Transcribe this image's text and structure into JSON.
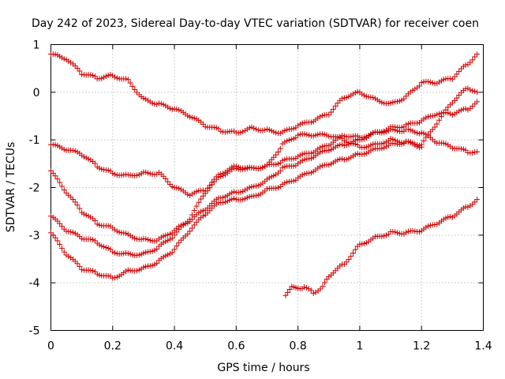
{
  "chart_data": {
    "type": "scatter",
    "title": "Day 242 of 2023, Sidereal Day-to-day VTEC variation (SDTVAR) for receiver coen",
    "xlabel": "GPS time / hours",
    "ylabel": "SDTVAR / TECUs",
    "xlim": [
      0,
      1.4
    ],
    "ylim": [
      -5,
      1
    ],
    "xticks": [
      "0",
      "0.2",
      "0.4",
      "0.6",
      "0.8",
      "1",
      "1.2",
      "1.4"
    ],
    "yticks": [
      "1",
      "0",
      "-1",
      "-2",
      "-3",
      "-4",
      "-5"
    ],
    "grid": true,
    "marker": "+",
    "color": "#cc0000",
    "series": [
      {
        "name": "s1",
        "points": [
          [
            0,
            0.8
          ],
          [
            0.05,
            0.7
          ],
          [
            0.1,
            0.4
          ],
          [
            0.15,
            0.3
          ],
          [
            0.2,
            0.35
          ],
          [
            0.25,
            0.25
          ],
          [
            0.3,
            -0.15
          ],
          [
            0.35,
            -0.25
          ],
          [
            0.4,
            -0.35
          ],
          [
            0.45,
            -0.5
          ],
          [
            0.5,
            -0.7
          ],
          [
            0.55,
            -0.8
          ],
          [
            0.6,
            -0.85
          ],
          [
            0.65,
            -0.75
          ],
          [
            0.7,
            -0.8
          ],
          [
            0.75,
            -0.85
          ],
          [
            0.8,
            -0.7
          ],
          [
            0.85,
            -0.6
          ],
          [
            0.9,
            -0.45
          ],
          [
            0.95,
            -0.1
          ],
          [
            1.0,
            0.0
          ],
          [
            1.05,
            -0.15
          ],
          [
            1.1,
            -0.25
          ],
          [
            1.15,
            -0.1
          ],
          [
            1.2,
            0.2
          ],
          [
            1.25,
            0.2
          ],
          [
            1.3,
            0.3
          ],
          [
            1.35,
            0.6
          ],
          [
            1.38,
            0.8
          ]
        ]
      },
      {
        "name": "s2",
        "points": [
          [
            0,
            -1.1
          ],
          [
            0.05,
            -1.2
          ],
          [
            0.1,
            -1.3
          ],
          [
            0.15,
            -1.55
          ],
          [
            0.2,
            -1.7
          ],
          [
            0.25,
            -1.75
          ],
          [
            0.3,
            -1.7
          ],
          [
            0.35,
            -1.7
          ],
          [
            0.4,
            -2.0
          ],
          [
            0.45,
            -2.15
          ],
          [
            0.5,
            -2.05
          ],
          [
            0.55,
            -1.7
          ],
          [
            0.6,
            -1.55
          ],
          [
            0.65,
            -1.6
          ],
          [
            0.7,
            -1.55
          ],
          [
            0.75,
            -1.45
          ],
          [
            0.8,
            -1.35
          ],
          [
            0.85,
            -1.25
          ],
          [
            0.9,
            -1.1
          ],
          [
            0.95,
            -0.9
          ],
          [
            1.0,
            -0.95
          ],
          [
            1.05,
            -0.85
          ],
          [
            1.1,
            -0.8
          ],
          [
            1.15,
            -0.8
          ],
          [
            1.2,
            -0.85
          ],
          [
            1.25,
            -1.05
          ],
          [
            1.3,
            -1.15
          ],
          [
            1.35,
            -1.25
          ],
          [
            1.38,
            -1.25
          ]
        ]
      },
      {
        "name": "s3",
        "points": [
          [
            0,
            -1.65
          ],
          [
            0.05,
            -2.1
          ],
          [
            0.1,
            -2.5
          ],
          [
            0.15,
            -2.75
          ],
          [
            0.2,
            -2.85
          ],
          [
            0.25,
            -3.0
          ],
          [
            0.3,
            -3.1
          ],
          [
            0.35,
            -3.1
          ],
          [
            0.4,
            -2.9
          ],
          [
            0.45,
            -2.7
          ],
          [
            0.5,
            -2.45
          ],
          [
            0.55,
            -2.2
          ],
          [
            0.6,
            -2.1
          ],
          [
            0.65,
            -2.0
          ],
          [
            0.7,
            -1.85
          ],
          [
            0.75,
            -1.6
          ],
          [
            0.8,
            -1.5
          ],
          [
            0.85,
            -1.35
          ],
          [
            0.9,
            -1.2
          ],
          [
            0.95,
            -1.1
          ],
          [
            1.0,
            -1.0
          ],
          [
            1.05,
            -0.85
          ],
          [
            1.1,
            -0.75
          ],
          [
            1.15,
            -0.7
          ],
          [
            1.2,
            -0.6
          ],
          [
            1.25,
            -0.45
          ],
          [
            1.3,
            -0.45
          ],
          [
            1.35,
            -0.35
          ],
          [
            1.38,
            -0.2
          ]
        ]
      },
      {
        "name": "s4",
        "points": [
          [
            0,
            -2.6
          ],
          [
            0.05,
            -2.9
          ],
          [
            0.1,
            -3.05
          ],
          [
            0.15,
            -3.15
          ],
          [
            0.2,
            -3.35
          ],
          [
            0.25,
            -3.4
          ],
          [
            0.3,
            -3.4
          ],
          [
            0.35,
            -3.25
          ],
          [
            0.4,
            -3.0
          ],
          [
            0.45,
            -2.65
          ],
          [
            0.5,
            -2.1
          ],
          [
            0.55,
            -1.75
          ],
          [
            0.6,
            -1.6
          ],
          [
            0.65,
            -1.6
          ],
          [
            0.7,
            -1.55
          ],
          [
            0.75,
            -1.1
          ],
          [
            0.8,
            -0.9
          ],
          [
            0.85,
            -0.9
          ],
          [
            0.9,
            -0.9
          ],
          [
            0.95,
            -1.0
          ],
          [
            1.0,
            -1.15
          ],
          [
            1.05,
            -1.1
          ],
          [
            1.1,
            -1.0
          ],
          [
            1.15,
            -1.05
          ],
          [
            1.2,
            -1.1
          ],
          [
            1.25,
            -0.65
          ],
          [
            1.3,
            -0.2
          ],
          [
            1.35,
            0.1
          ],
          [
            1.38,
            0.0
          ]
        ]
      },
      {
        "name": "s5",
        "points": [
          [
            0,
            -2.95
          ],
          [
            0.05,
            -3.4
          ],
          [
            0.1,
            -3.7
          ],
          [
            0.15,
            -3.8
          ],
          [
            0.2,
            -3.9
          ],
          [
            0.25,
            -3.75
          ],
          [
            0.3,
            -3.7
          ],
          [
            0.35,
            -3.55
          ],
          [
            0.4,
            -3.3
          ],
          [
            0.45,
            -2.9
          ],
          [
            0.5,
            -2.55
          ],
          [
            0.55,
            -2.3
          ],
          [
            0.6,
            -2.25
          ],
          [
            0.65,
            -2.2
          ],
          [
            0.7,
            -2.05
          ],
          [
            0.75,
            -1.95
          ],
          [
            0.8,
            -1.8
          ],
          [
            0.85,
            -1.65
          ],
          [
            0.9,
            -1.5
          ],
          [
            0.95,
            -1.4
          ],
          [
            1.0,
            -1.3
          ],
          [
            1.05,
            -1.2
          ],
          [
            1.1,
            -1.1
          ],
          [
            1.15,
            -1.05
          ],
          [
            1.2,
            -1.15
          ]
        ]
      },
      {
        "name": "s6",
        "points": [
          [
            0.76,
            -4.25
          ],
          [
            0.78,
            -4.1
          ],
          [
            0.82,
            -4.1
          ],
          [
            0.85,
            -4.2
          ],
          [
            0.88,
            -4.1
          ],
          [
            0.9,
            -3.85
          ],
          [
            0.95,
            -3.6
          ],
          [
            1.0,
            -3.2
          ],
          [
            1.05,
            -3.05
          ],
          [
            1.1,
            -2.95
          ],
          [
            1.15,
            -2.95
          ],
          [
            1.2,
            -2.9
          ],
          [
            1.25,
            -2.75
          ],
          [
            1.3,
            -2.6
          ],
          [
            1.35,
            -2.4
          ],
          [
            1.38,
            -2.25
          ]
        ]
      }
    ]
  }
}
